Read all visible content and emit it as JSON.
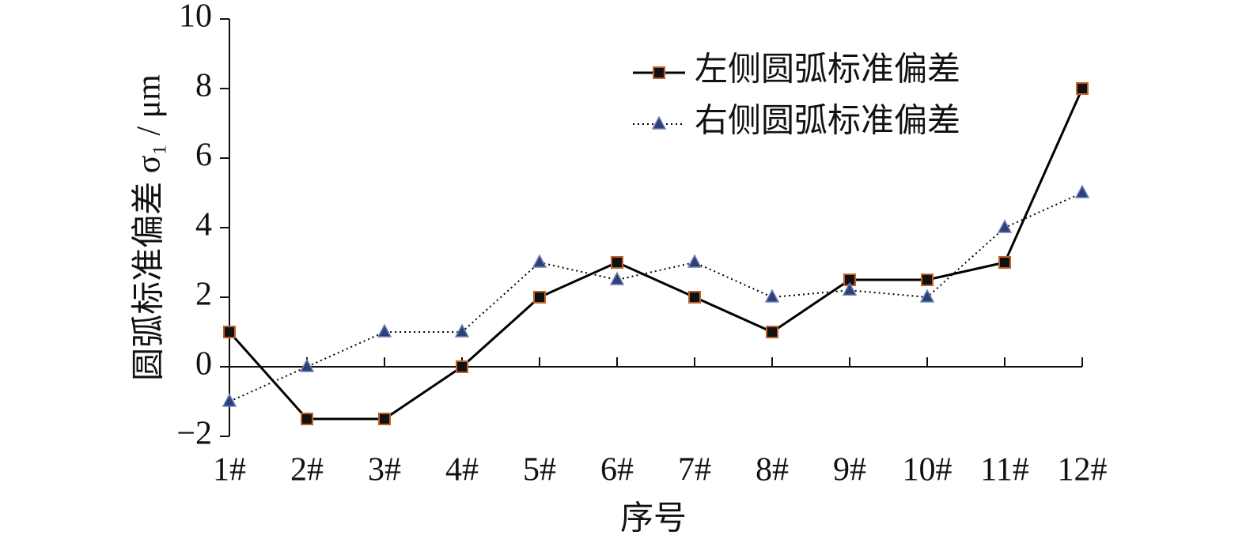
{
  "chart_data": {
    "type": "line",
    "x_label": "序号",
    "y_label": "圆弧标准偏差 σ₁ / μm",
    "categories": [
      "1#",
      "2#",
      "3#",
      "4#",
      "5#",
      "6#",
      "7#",
      "8#",
      "9#",
      "10#",
      "11#",
      "12#"
    ],
    "series": [
      {
        "name": "左侧圆弧标准偏差",
        "color": "#000000",
        "marker": "square",
        "marker_color": "#111111",
        "marker_edge": "#c0602a",
        "line_style": "solid",
        "values": [
          1,
          -1.5,
          -1.5,
          0,
          2,
          3,
          2,
          1,
          2.5,
          2.5,
          3,
          8
        ]
      },
      {
        "name": "右侧圆弧标准偏差",
        "color": "#000000",
        "marker": "triangle",
        "marker_color": "#2e3f7a",
        "marker_edge": "#6f86b8",
        "line_style": "dotted",
        "values": [
          -1,
          0,
          1,
          1,
          3,
          2.5,
          3,
          2,
          2.2,
          2,
          4,
          5
        ]
      }
    ],
    "ylim": [
      -2,
      10
    ],
    "yticks": [
      {
        "value": -2,
        "label": "−2"
      },
      0,
      2,
      4,
      6,
      8,
      10
    ],
    "grid": false,
    "legend": "top-right"
  }
}
